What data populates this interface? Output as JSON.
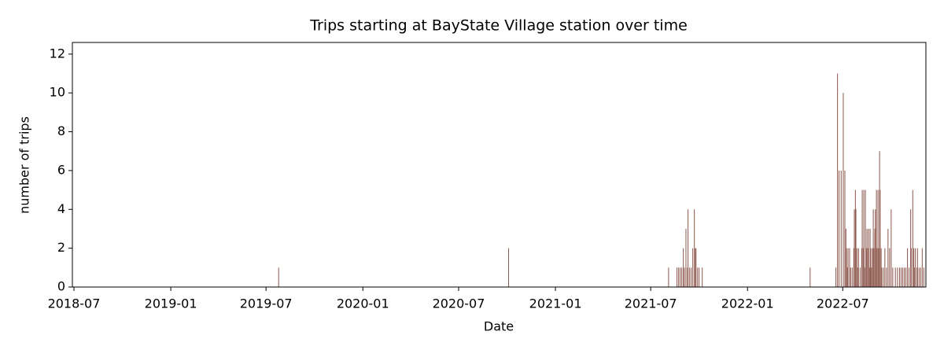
{
  "chart_data": {
    "type": "bar",
    "title": "Trips starting at BayState Village station over time",
    "x_label": "Date",
    "y_label": "number of trips",
    "color": "#8c564b",
    "x": [
      "2019-07-25",
      "2020-10-04",
      "2021-08-04",
      "2021-08-20",
      "2021-08-23",
      "2021-08-26",
      "2021-08-29",
      "2021-09-01",
      "2021-09-03",
      "2021-09-06",
      "2021-09-09",
      "2021-09-10",
      "2021-09-13",
      "2021-09-16",
      "2021-09-19",
      "2021-09-22",
      "2021-09-24",
      "2021-09-25",
      "2021-09-28",
      "2021-10-01",
      "2021-10-07",
      "2022-04-30",
      "2022-06-18",
      "2022-06-21",
      "2022-06-24",
      "2022-06-28",
      "2022-07-02",
      "2022-07-05",
      "2022-07-07",
      "2022-07-08",
      "2022-07-10",
      "2022-07-11",
      "2022-07-14",
      "2022-07-16",
      "2022-07-19",
      "2022-07-22",
      "2022-07-23",
      "2022-07-25",
      "2022-07-26",
      "2022-07-28",
      "2022-07-29",
      "2022-07-31",
      "2022-08-03",
      "2022-08-06",
      "2022-08-07",
      "2022-08-09",
      "2022-08-10",
      "2022-08-12",
      "2022-08-13",
      "2022-08-15",
      "2022-08-16",
      "2022-08-18",
      "2022-08-19",
      "2022-08-21",
      "2022-08-22",
      "2022-08-23",
      "2022-08-25",
      "2022-08-26",
      "2022-08-28",
      "2022-08-29",
      "2022-08-31",
      "2022-09-01",
      "2022-09-03",
      "2022-09-04",
      "2022-09-06",
      "2022-09-07",
      "2022-09-09",
      "2022-09-10",
      "2022-09-12",
      "2022-09-13",
      "2022-09-16",
      "2022-09-19",
      "2022-09-22",
      "2022-09-25",
      "2022-09-28",
      "2022-10-01",
      "2022-10-04",
      "2022-10-09",
      "2022-10-13",
      "2022-10-17",
      "2022-10-20",
      "2022-10-23",
      "2022-10-26",
      "2022-10-29",
      "2022-11-01",
      "2022-11-04",
      "2022-11-07",
      "2022-11-08",
      "2022-11-11",
      "2022-11-13",
      "2022-11-14",
      "2022-11-16",
      "2022-11-19",
      "2022-11-20",
      "2022-11-23",
      "2022-11-26",
      "2022-11-29",
      "2022-12-02"
    ],
    "values": [
      1,
      2,
      1,
      1,
      1,
      1,
      1,
      2,
      1,
      3,
      1,
      4,
      1,
      1,
      2,
      4,
      2,
      2,
      1,
      1,
      1,
      1,
      1,
      11,
      6,
      6,
      10,
      6,
      3,
      2,
      1,
      2,
      2,
      1,
      1,
      2,
      4,
      5,
      4,
      2,
      1,
      2,
      1,
      2,
      5,
      2,
      5,
      1,
      5,
      2,
      3,
      2,
      3,
      1,
      3,
      2,
      1,
      2,
      4,
      2,
      3,
      4,
      5,
      2,
      5,
      2,
      7,
      5,
      2,
      1,
      1,
      2,
      1,
      3,
      2,
      4,
      1,
      1,
      1,
      1,
      1,
      1,
      1,
      1,
      2,
      1,
      4,
      2,
      5,
      2,
      1,
      2,
      1,
      2,
      1,
      1,
      2,
      1
    ],
    "xlim": [
      "2018-06-28",
      "2022-12-06"
    ],
    "xticks": [
      {
        "value": "2018-07-01",
        "label": "2018-07"
      },
      {
        "value": "2019-01-01",
        "label": "2019-01"
      },
      {
        "value": "2019-07-01",
        "label": "2019-07"
      },
      {
        "value": "2020-01-01",
        "label": "2020-01"
      },
      {
        "value": "2020-07-01",
        "label": "2020-07"
      },
      {
        "value": "2021-01-01",
        "label": "2021-01"
      },
      {
        "value": "2021-07-01",
        "label": "2021-07"
      },
      {
        "value": "2022-01-01",
        "label": "2022-01"
      },
      {
        "value": "2022-07-01",
        "label": "2022-07"
      }
    ],
    "ylim": [
      0,
      12.6
    ],
    "yticks": [
      0,
      2,
      4,
      6,
      8,
      10,
      12
    ]
  }
}
